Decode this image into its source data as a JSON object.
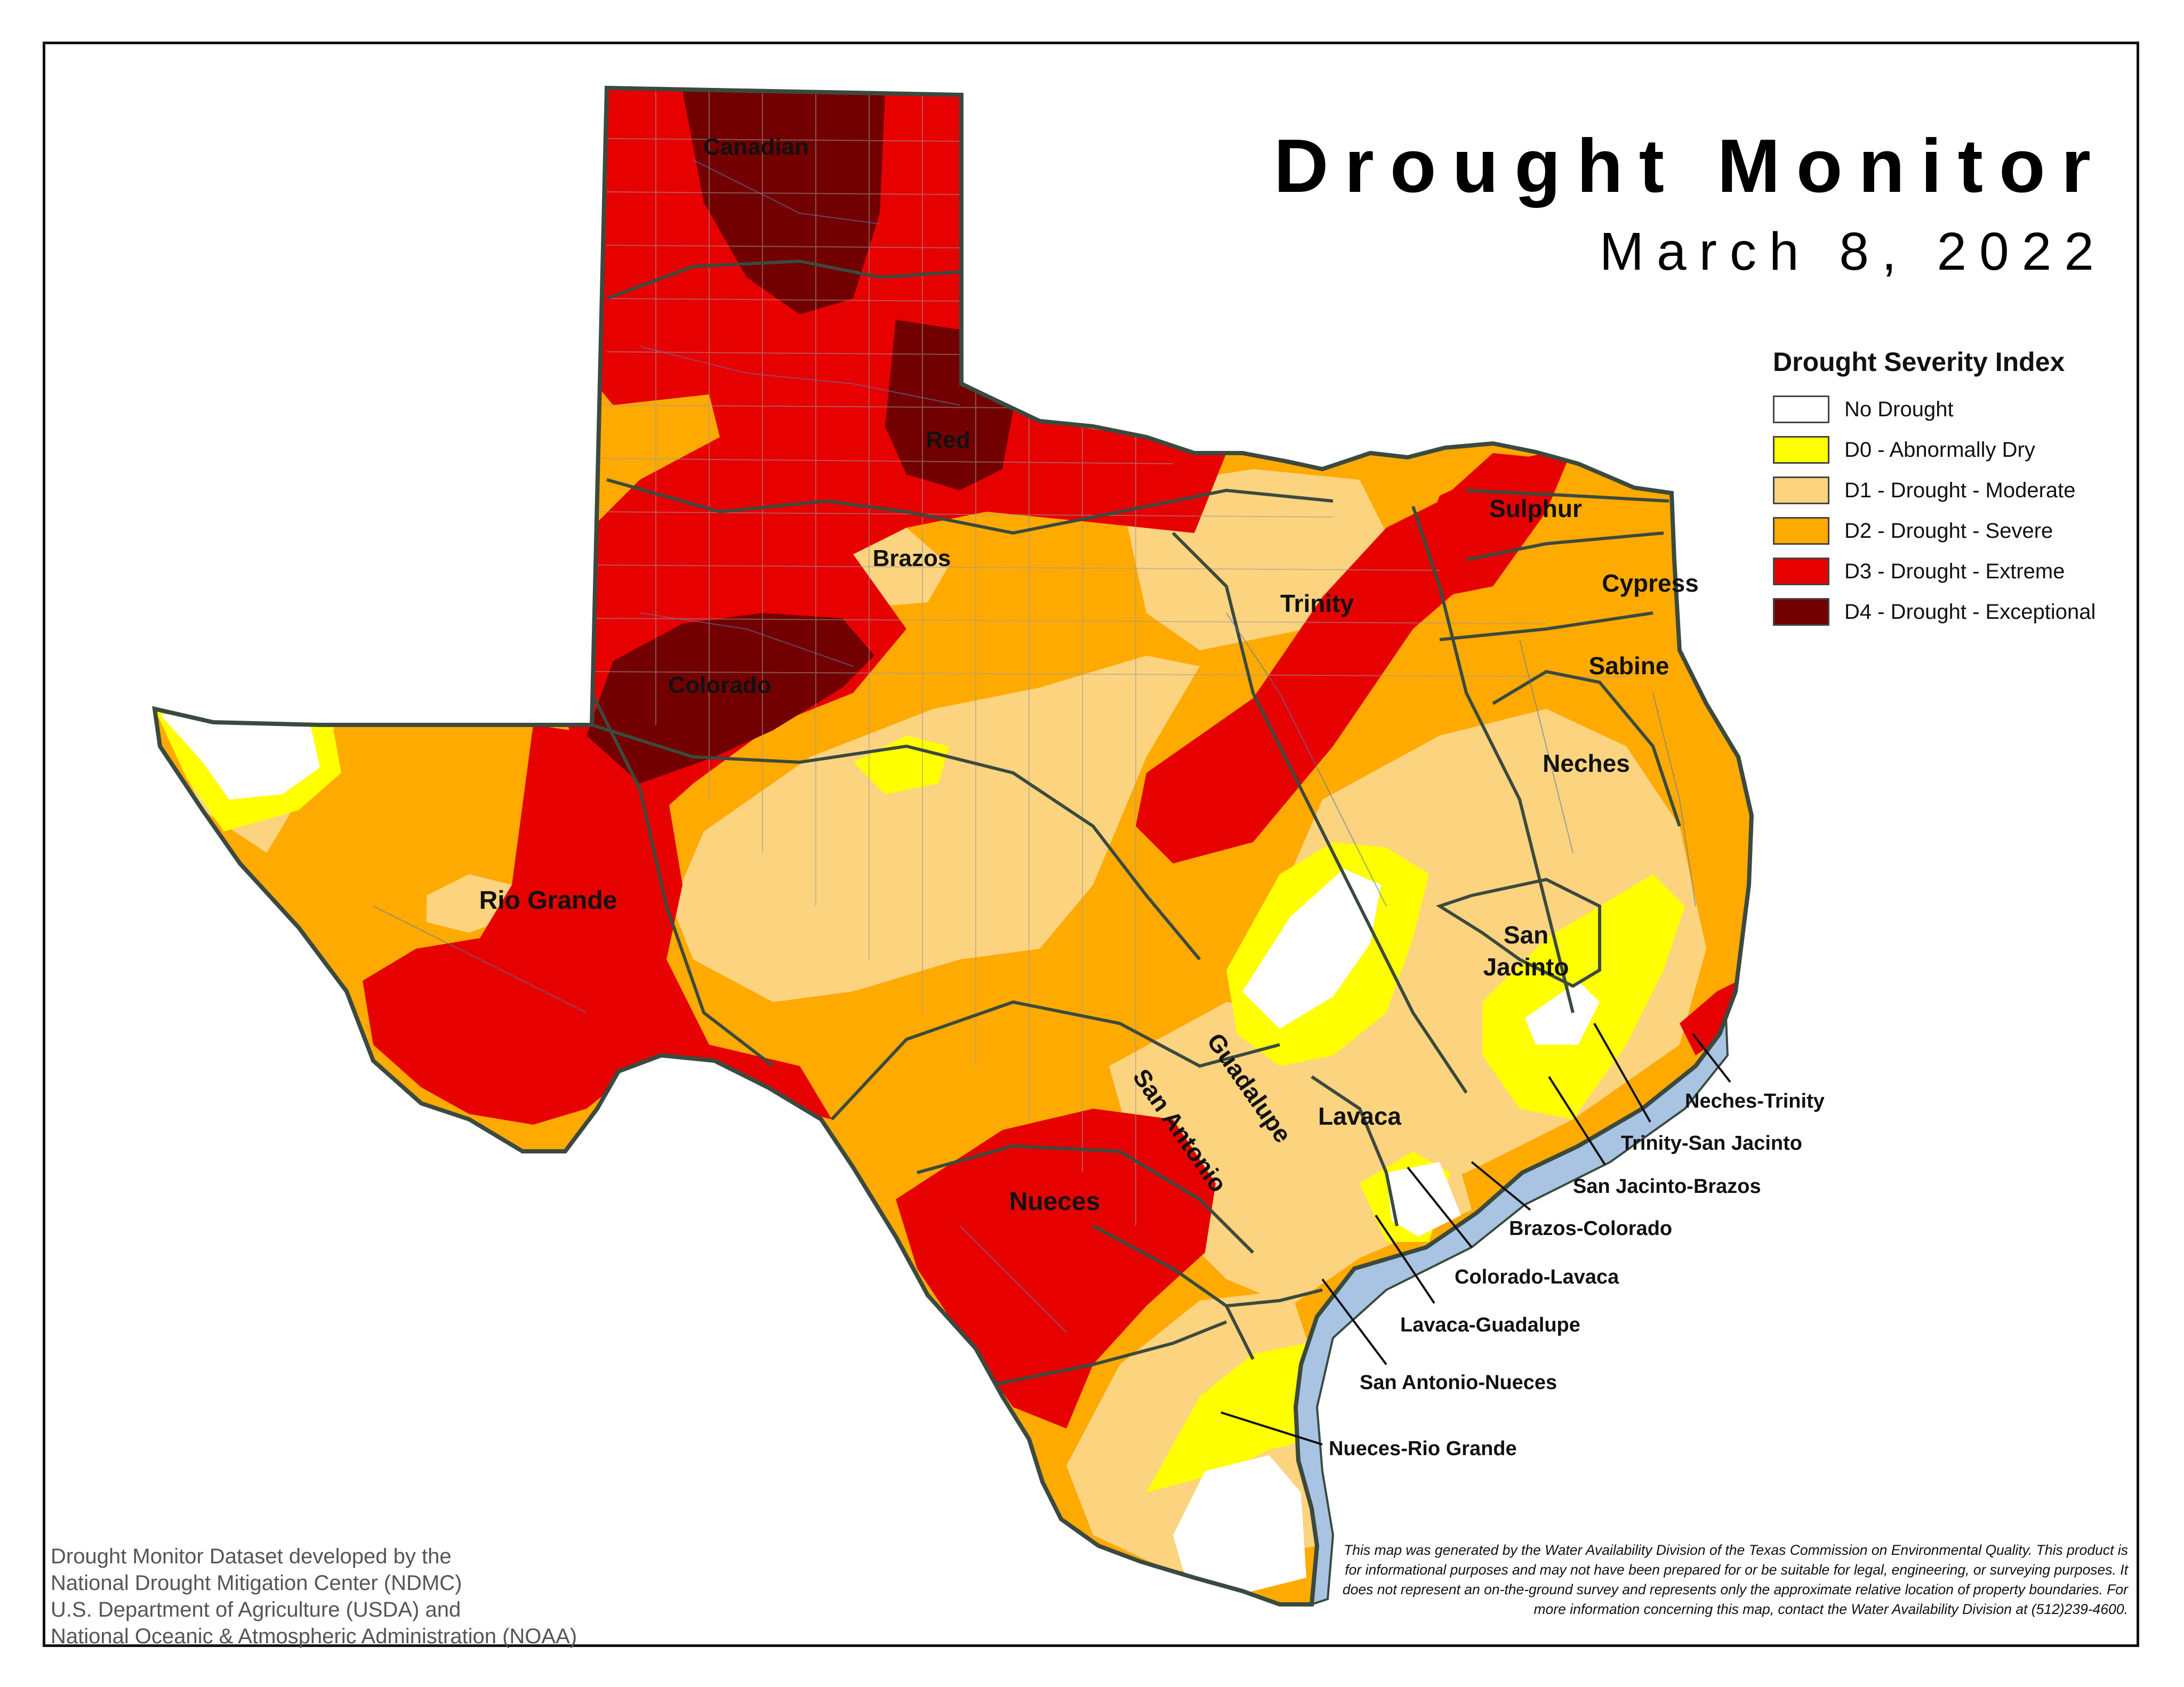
{
  "title": "Drought Monitor",
  "date": "March 8, 2022",
  "legend": {
    "title": "Drought Severity Index",
    "items": [
      {
        "label": "No Drought",
        "color": "#ffffff"
      },
      {
        "label": "D0 - Abnormally Dry",
        "color": "#ffff00"
      },
      {
        "label": "D1 - Drought - Moderate",
        "color": "#fcd37f"
      },
      {
        "label": "D2 - Drought - Severe",
        "color": "#ffaa00"
      },
      {
        "label": "D3 - Drought - Extreme",
        "color": "#e60000"
      },
      {
        "label": "D4 - Drought - Exceptional",
        "color": "#730000"
      }
    ]
  },
  "basins": {
    "canadian": "Canadian",
    "red": "Red",
    "brazos": "Brazos",
    "colorado": "Colorado",
    "rio_grande": "Rio Grande",
    "trinity": "Trinity",
    "sulphur": "Sulphur",
    "cypress": "Cypress",
    "sabine": "Sabine",
    "neches": "Neches",
    "san_jacinto_1": "San",
    "san_jacinto_2": "Jacinto",
    "guadalupe": "Guadalupe",
    "san_antonio": "San Antonio",
    "lavaca": "Lavaca",
    "nueces": "Nueces"
  },
  "coastal_basins": {
    "neches_trinity": "Neches-Trinity",
    "trinity_san_jacinto": "Trinity-San Jacinto",
    "san_jacinto_brazos": "San Jacinto-Brazos",
    "brazos_colorado": "Brazos-Colorado",
    "colorado_lavaca": "Colorado-Lavaca",
    "lavaca_guadalupe": "Lavaca-Guadalupe",
    "san_antonio_nueces": "San Antonio-Nueces",
    "nueces_rio_grande": "Nueces-Rio Grande"
  },
  "credit": [
    "Drought Monitor Dataset developed by the",
    "National Drought Mitigation Center (NDMC)",
    "U.S. Department of Agriculture (USDA) and",
    "National Oceanic & Atmospheric Administration (NOAA)"
  ],
  "disclaimer": "This map was generated by the Water Availability Division of the Texas Commission on Environmental Quality. This product is for informational purposes and may not have been prepared for or be suitable for legal, engineering, or surveying purposes. It does not represent an on-the-ground survey and represents only the approximate relative location of property boundaries. For more information concerning this map, contact the Water Availability Division at (512)239-4600.",
  "colors": {
    "water": "#a9c3e3",
    "border": "#3b4a3f",
    "river_basin": "#3b4a3f"
  }
}
